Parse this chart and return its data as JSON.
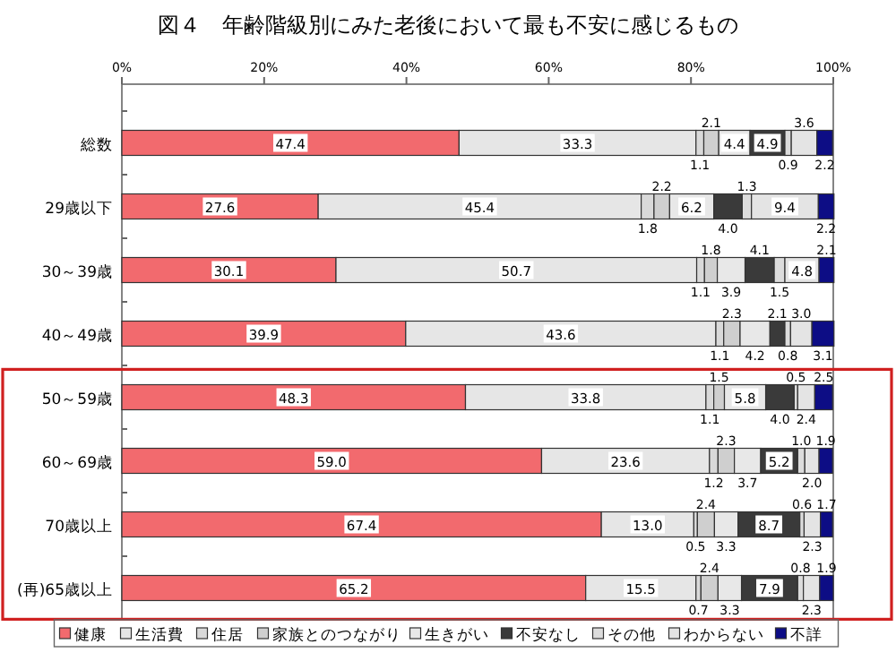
{
  "chart_data": {
    "type": "bar",
    "orientation": "horizontal",
    "stacked": true,
    "title": "図４　年齢階級別にみた老後において最も不安に感じるもの",
    "categories": [
      "総数",
      "29歳以下",
      "30～39歳",
      "40～49歳",
      "50～59歳",
      "60～69歳",
      "70歳以上",
      "(再)65歳以上"
    ],
    "series": [
      {
        "name": "健康",
        "color": "#f26a6e",
        "values": [
          47.4,
          27.6,
          30.1,
          39.9,
          48.3,
          59.0,
          67.4,
          65.2
        ],
        "value_labels": [
          "47.4",
          "27.6",
          "30.1",
          "39.9",
          "48.3",
          "59.0",
          "67.4",
          "65.2"
        ]
      },
      {
        "name": "生活費",
        "color": "#e6e6e6",
        "values": [
          33.3,
          45.4,
          50.7,
          43.6,
          33.8,
          23.6,
          13.0,
          15.5
        ],
        "value_labels": [
          "33.3",
          "45.4",
          "50.7",
          "43.6",
          "33.8",
          "23.6",
          "13.0",
          "15.5"
        ]
      },
      {
        "name": "住居",
        "color": "#d9d9d9",
        "values": [
          1.1,
          1.8,
          1.1,
          1.1,
          1.1,
          1.2,
          0.5,
          0.7
        ],
        "value_labels": [
          "1.1",
          "1.8",
          "1.1",
          "1.1",
          "1.1",
          "1.2",
          "0.5",
          "0.7"
        ]
      },
      {
        "name": "家族とのつながり",
        "color": "#cfcfcf",
        "values": [
          2.1,
          2.2,
          1.8,
          2.3,
          1.5,
          2.3,
          2.4,
          2.4
        ],
        "value_labels": [
          "2.1",
          "2.2",
          "1.8",
          "2.3",
          "1.5",
          "2.3",
          "2.4",
          "2.4"
        ]
      },
      {
        "name": "生きがい",
        "color": "#e8e8e8",
        "values": [
          4.4,
          6.2,
          3.9,
          4.2,
          5.8,
          3.7,
          3.3,
          3.3
        ],
        "value_labels": [
          "4.4",
          "6.2",
          "3.9",
          "4.2",
          "5.8",
          "3.7",
          "3.3",
          "3.3"
        ]
      },
      {
        "name": "不安なし",
        "color": "#3a3a3a",
        "values": [
          4.9,
          4.0,
          4.1,
          2.1,
          4.0,
          5.2,
          8.7,
          7.9
        ],
        "value_labels": [
          "4.9",
          "4.0",
          "4.1",
          "2.1",
          "4.0",
          "5.2",
          "8.7",
          "7.9"
        ]
      },
      {
        "name": "その他",
        "color": "#dcdcdc",
        "values": [
          0.9,
          1.3,
          1.5,
          0.8,
          0.5,
          1.0,
          0.6,
          0.8
        ],
        "value_labels": [
          "0.9",
          "1.3",
          "1.5",
          "0.8",
          "0.5",
          "1.0",
          "0.6",
          "0.8"
        ]
      },
      {
        "name": "わからない",
        "color": "#e4e4e4",
        "values": [
          3.6,
          9.4,
          4.8,
          3.0,
          2.4,
          2.0,
          2.3,
          2.3
        ],
        "value_labels": [
          "3.6",
          "9.4",
          "4.8",
          "3.0",
          "2.4",
          "2.0",
          "2.3",
          "2.3"
        ]
      },
      {
        "name": "不詳",
        "color": "#0d0d85",
        "values": [
          2.2,
          2.2,
          2.1,
          3.1,
          2.5,
          1.9,
          1.7,
          1.9
        ],
        "value_labels": [
          "2.2",
          "2.2",
          "2.1",
          "3.1",
          "2.5",
          "1.9",
          "1.7",
          "1.9"
        ]
      }
    ],
    "xlim": [
      0,
      100
    ],
    "xticks": [
      {
        "value": 0,
        "label": "0%"
      },
      {
        "value": 20,
        "label": "20%"
      },
      {
        "value": 40,
        "label": "40%"
      },
      {
        "value": 60,
        "label": "60%"
      },
      {
        "value": 80,
        "label": "80%"
      },
      {
        "value": 100,
        "label": "100%"
      }
    ],
    "legend": "bottom"
  }
}
